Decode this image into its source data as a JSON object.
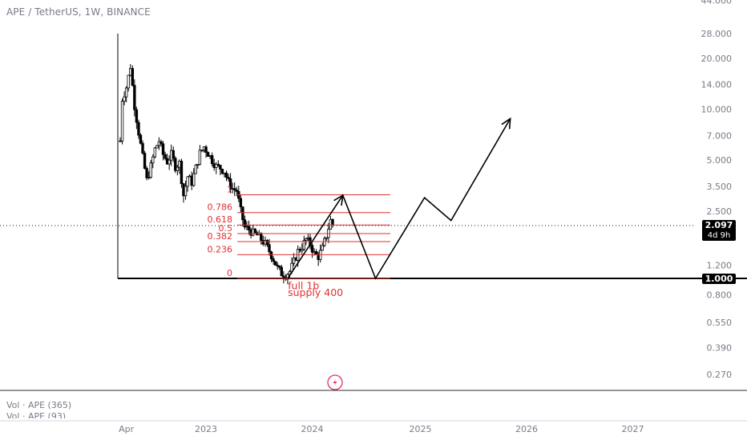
{
  "header": {
    "symbol_title": "APE / TetherUS, 1W, BINANCE"
  },
  "volume_panel": {
    "line1": "Vol · APE (365)",
    "line2": "Vol · APE (93)"
  },
  "price_badges": {
    "current": {
      "value": "2.097",
      "countdown": "4d 9h"
    },
    "line": {
      "value": "1.000"
    }
  },
  "chart_data": {
    "type": "candlestick",
    "title": "APE / TetherUS, 1W, BINANCE",
    "y_scale": "log",
    "y_ticks": [
      "44.000",
      "28.000",
      "20.000",
      "14.000",
      "10.000",
      "7.000",
      "5.000",
      "3.500",
      "2.500",
      "1.200",
      "0.800",
      "0.550",
      "0.390",
      "0.270"
    ],
    "x_ticks": [
      "Apr",
      "2023",
      "2024",
      "2025",
      "2026",
      "2027"
    ],
    "current_price": 2.097,
    "horizontal_line": 1.0,
    "price_path": [
      [
        "2022-03-14",
        6.5
      ],
      [
        "2022-03-21",
        11.5
      ],
      [
        "2022-04-04",
        13.5
      ],
      [
        "2022-04-18",
        18.0
      ],
      [
        "2022-05-02",
        10.5
      ],
      [
        "2022-05-16",
        7.3
      ],
      [
        "2022-05-30",
        5.2
      ],
      [
        "2022-06-13",
        3.8
      ],
      [
        "2022-06-27",
        4.6
      ],
      [
        "2022-07-11",
        5.8
      ],
      [
        "2022-07-25",
        6.5
      ],
      [
        "2022-08-08",
        5.4
      ],
      [
        "2022-08-22",
        4.9
      ],
      [
        "2022-09-05",
        5.4
      ],
      [
        "2022-09-19",
        4.6
      ],
      [
        "2022-10-03",
        4.8
      ],
      [
        "2022-10-17",
        3.1
      ],
      [
        "2022-10-31",
        4.0
      ],
      [
        "2022-11-14",
        3.7
      ],
      [
        "2022-11-28",
        4.5
      ],
      [
        "2022-12-12",
        5.5
      ],
      [
        "2022-12-26",
        6.0
      ],
      [
        "2023-01-09",
        5.5
      ],
      [
        "2023-01-23",
        5.0
      ],
      [
        "2023-02-06",
        4.6
      ],
      [
        "2023-02-20",
        4.5
      ],
      [
        "2023-03-06",
        4.3
      ],
      [
        "2023-03-20",
        3.7
      ],
      [
        "2023-04-03",
        3.4
      ],
      [
        "2023-04-17",
        3.3
      ],
      [
        "2023-05-01",
        2.5
      ],
      [
        "2023-05-15",
        2.0
      ],
      [
        "2023-05-29",
        1.95
      ],
      [
        "2023-06-12",
        1.85
      ],
      [
        "2023-06-26",
        1.8
      ],
      [
        "2023-07-10",
        1.7
      ],
      [
        "2023-07-24",
        1.6
      ],
      [
        "2023-08-07",
        1.45
      ],
      [
        "2023-08-21",
        1.3
      ],
      [
        "2023-09-04",
        1.15
      ],
      [
        "2023-09-18",
        1.07
      ],
      [
        "2023-10-02",
        1.05
      ],
      [
        "2023-10-16",
        1.1
      ],
      [
        "2023-10-30",
        1.25
      ],
      [
        "2023-11-13",
        1.45
      ],
      [
        "2023-11-27",
        1.55
      ],
      [
        "2023-12-11",
        1.7
      ],
      [
        "2023-12-25",
        1.6
      ],
      [
        "2024-01-08",
        1.4
      ],
      [
        "2024-01-22",
        1.35
      ],
      [
        "2024-02-05",
        1.5
      ],
      [
        "2024-02-19",
        1.8
      ],
      [
        "2024-03-04",
        2.2
      ],
      [
        "2024-03-11",
        2.097
      ]
    ],
    "fibonacci": {
      "levels": [
        {
          "label": "1",
          "price": 3.12
        },
        {
          "label": "0.786",
          "price": 2.45
        },
        {
          "label": "0.618",
          "price": 2.07
        },
        {
          "label": "0.5",
          "price": 1.84
        },
        {
          "label": "0.382",
          "price": 1.65
        },
        {
          "label": "0.236",
          "price": 1.38
        },
        {
          "label": "0",
          "price": 1.0
        }
      ]
    },
    "projection_path": [
      [
        "2023-10-09",
        1.0
      ],
      [
        "2024-04-15",
        3.1
      ],
      [
        "2024-08-05",
        1.0
      ],
      [
        "2025-01-20",
        3.0
      ],
      [
        "2025-04-21",
        2.2
      ],
      [
        "2025-11-10",
        8.8
      ]
    ],
    "annotations": [
      {
        "text": "full 1b",
        "x": "2023-11-06",
        "y": 0.9
      },
      {
        "text": "supply 400",
        "x": "2023-11-06",
        "y": 0.82
      }
    ]
  }
}
